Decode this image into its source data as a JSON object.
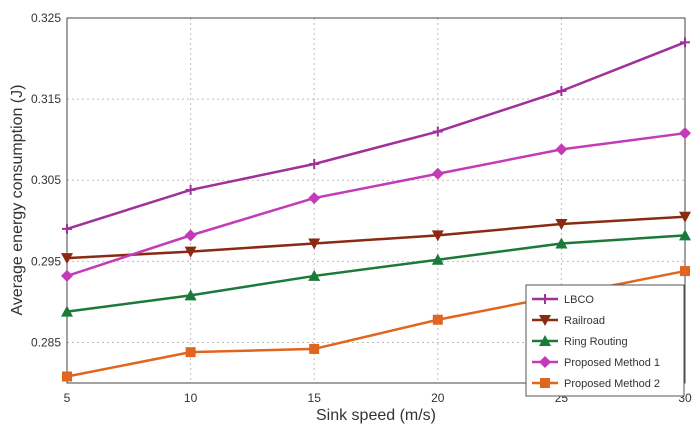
{
  "chart_data": {
    "type": "line",
    "xlabel": "Sink speed (m/s)",
    "ylabel": "Average energy consumption (J)",
    "x": [
      5,
      10,
      15,
      20,
      25,
      30
    ],
    "xlim": [
      5,
      30
    ],
    "ylim": [
      0.28,
      0.325
    ],
    "x_ticks": [
      "5",
      "10",
      "15",
      "20",
      "25",
      "30"
    ],
    "y_ticks": [
      "0.285",
      "0.295",
      "0.305",
      "0.315",
      "0.325"
    ],
    "y_tick_values": [
      0.285,
      0.295,
      0.305,
      0.315,
      0.325
    ],
    "grid": true,
    "legend_position": "bottom-right",
    "series": [
      {
        "name": "LBCO",
        "marker": "plus",
        "color": "#a0309a",
        "values": [
          0.299,
          0.3038,
          0.307,
          0.311,
          0.316,
          0.322
        ]
      },
      {
        "name": "Railroad",
        "marker": "triangle-down",
        "color": "#8b2a12",
        "values": [
          0.2954,
          0.2962,
          0.2972,
          0.2982,
          0.2996,
          0.3005
        ]
      },
      {
        "name": "Ring Routing",
        "marker": "triangle-up",
        "color": "#1b7a3a",
        "values": [
          0.2888,
          0.2908,
          0.2932,
          0.2952,
          0.2972,
          0.2982
        ]
      },
      {
        "name": "Proposed Method 1",
        "marker": "diamond",
        "color": "#c43bb8",
        "values": [
          0.2932,
          0.2982,
          0.3028,
          0.3058,
          0.3088,
          0.3108
        ]
      },
      {
        "name": "Proposed Method 2",
        "marker": "square",
        "color": "#e0651e",
        "values": [
          0.2808,
          0.2838,
          0.2842,
          0.2878,
          0.2908,
          0.2938
        ]
      }
    ]
  }
}
